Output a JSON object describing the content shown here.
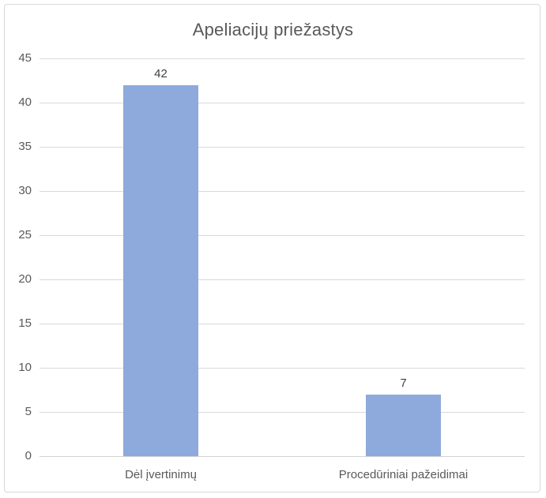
{
  "chart_data": {
    "type": "bar",
    "title": "Apeliacijų priežastys",
    "categories": [
      "Dėl įvertinimų",
      "Procedūriniai pažeidimai"
    ],
    "values": [
      42,
      7
    ],
    "xlabel": "",
    "ylabel": "",
    "ylim": [
      0,
      45
    ],
    "yticks": [
      0,
      5,
      10,
      15,
      20,
      25,
      30,
      35,
      40,
      45
    ],
    "grid": true,
    "legend": false,
    "data_labels": true,
    "colors": {
      "bar": "#8EA9DB",
      "gridline": "#D9D9D9",
      "axis_line": "#D2D2D2",
      "title_text": "#595959",
      "tick_text": "#595959",
      "category_text": "#595959",
      "data_label_text": "#404040",
      "frame_border": "#D9D9D9",
      "background": "#FFFFFF"
    }
  }
}
